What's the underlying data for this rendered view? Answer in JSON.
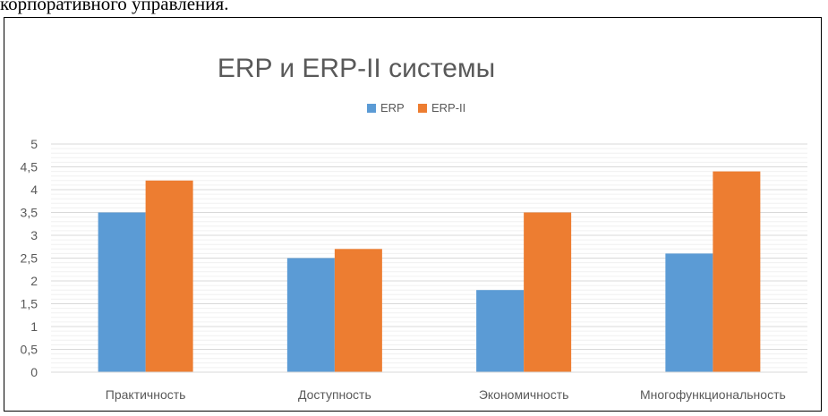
{
  "document": {
    "caption_fragment": "корпоративного управления."
  },
  "chart_data": {
    "type": "bar",
    "title": "ERP и ERP-II системы",
    "categories": [
      "Практичность",
      "Доступность",
      "Экономичность",
      "Многофункциональность"
    ],
    "series": [
      {
        "name": "ERP",
        "values": [
          3.5,
          2.5,
          1.8,
          2.6
        ],
        "color": "#5B9BD5"
      },
      {
        "name": "ERP-II",
        "values": [
          4.2,
          2.7,
          3.5,
          4.4
        ],
        "color": "#ED7D31"
      }
    ],
    "ylim": [
      0,
      5
    ],
    "yticks": [
      "0",
      "0,5",
      "1",
      "1,5",
      "2",
      "2,5",
      "3",
      "3,5",
      "4",
      "4,5",
      "5"
    ],
    "ytick_values": [
      0,
      0.5,
      1,
      1.5,
      2,
      2.5,
      3,
      3.5,
      4,
      4.5,
      5
    ],
    "xlabel": "",
    "ylabel": "",
    "grid": true,
    "minor_grid": true,
    "legend_position": "top"
  }
}
